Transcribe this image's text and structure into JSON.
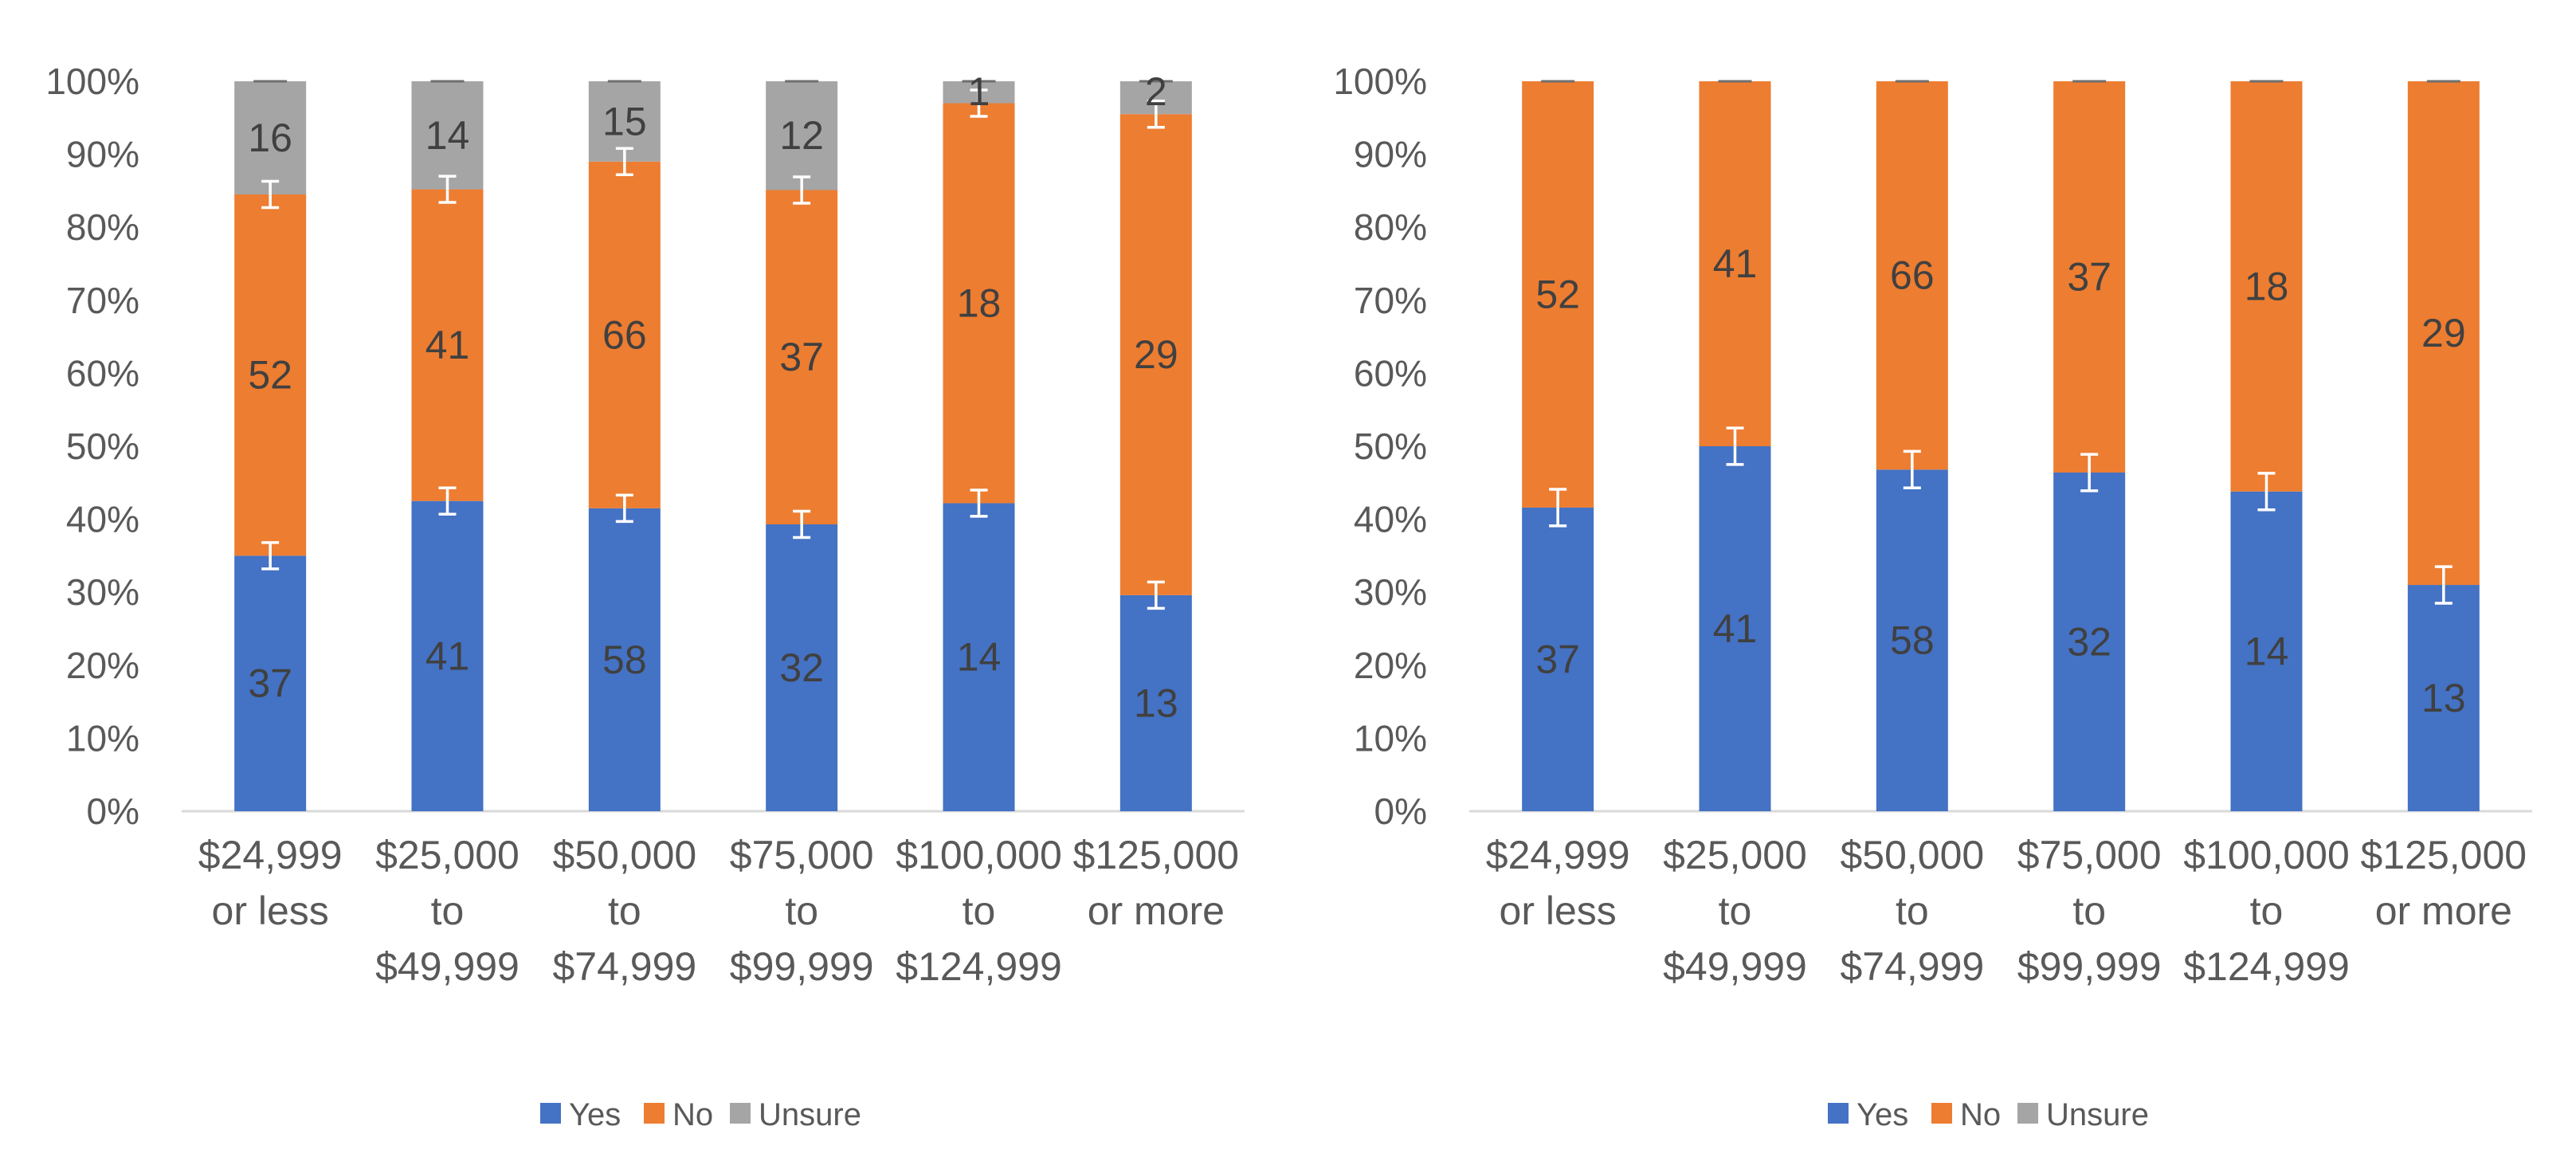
{
  "colors": {
    "yes": "#4472C4",
    "no": "#ED7D31",
    "unsure": "#A5A5A5",
    "axis": "#D9D9D9",
    "text": "#595959",
    "label": "#404040",
    "errorbar": "#ffffff"
  },
  "chart_data": [
    {
      "type": "bar",
      "stacked": true,
      "percent_stacked": true,
      "title": "",
      "xlabel": "",
      "ylabel": "",
      "ylim": [
        0,
        100
      ],
      "y_ticks": [
        "0%",
        "10%",
        "20%",
        "30%",
        "40%",
        "50%",
        "60%",
        "70%",
        "80%",
        "90%",
        "100%"
      ],
      "categories": [
        [
          "$24,999",
          "or less"
        ],
        [
          "$25,000",
          "to",
          "$49,999"
        ],
        [
          "$50,000",
          "to",
          "$74,999"
        ],
        [
          "$75,000",
          "to",
          "$99,999"
        ],
        [
          "$100,000",
          "to",
          "$124,999"
        ],
        [
          "$125,000",
          "or more"
        ]
      ],
      "legend": {
        "position": "bottom",
        "entries": [
          "Yes",
          "No",
          "Unsure"
        ]
      },
      "series": [
        {
          "name": "Yes",
          "counts": [
            37,
            41,
            58,
            32,
            14,
            13
          ],
          "percent": [
            35.0,
            42.5,
            41.5,
            39.3,
            42.2,
            29.6
          ]
        },
        {
          "name": "No",
          "counts": [
            52,
            41,
            66,
            37,
            18,
            29
          ],
          "percent": [
            49.5,
            42.7,
            47.5,
            45.8,
            54.8,
            65.9
          ]
        },
        {
          "name": "Unsure",
          "counts": [
            16,
            14,
            15,
            12,
            1,
            2
          ],
          "percent": [
            15.5,
            14.8,
            11.0,
            14.9,
            3.0,
            4.5
          ]
        }
      ],
      "error_bar_percent": [
        1.8,
        1.8,
        1.8,
        1.8,
        1.8,
        1.8
      ]
    },
    {
      "type": "bar",
      "stacked": true,
      "percent_stacked": true,
      "title": "",
      "xlabel": "",
      "ylabel": "",
      "ylim": [
        0,
        100
      ],
      "y_ticks": [
        "0%",
        "10%",
        "20%",
        "30%",
        "40%",
        "50%",
        "60%",
        "70%",
        "80%",
        "90%",
        "100%"
      ],
      "categories": [
        [
          "$24,999",
          "or less"
        ],
        [
          "$25,000",
          "to",
          "$49,999"
        ],
        [
          "$50,000",
          "to",
          "$74,999"
        ],
        [
          "$75,000",
          "to",
          "$99,999"
        ],
        [
          "$100,000",
          "to",
          "$124,999"
        ],
        [
          "$125,000",
          "or more"
        ]
      ],
      "legend": {
        "position": "bottom",
        "entries": [
          "Yes",
          "No",
          "Unsure"
        ]
      },
      "series": [
        {
          "name": "Yes",
          "counts": [
            37,
            41,
            58,
            32,
            14,
            13
          ],
          "percent": [
            41.6,
            50.0,
            46.8,
            46.4,
            43.8,
            31.0
          ]
        },
        {
          "name": "No",
          "counts": [
            52,
            41,
            66,
            37,
            18,
            29
          ],
          "percent": [
            58.4,
            50.0,
            53.2,
            53.6,
            56.2,
            69.0
          ]
        },
        {
          "name": "Unsure",
          "counts": [
            0,
            0,
            0,
            0,
            0,
            0
          ],
          "percent": [
            0,
            0,
            0,
            0,
            0,
            0
          ]
        }
      ],
      "error_bar_percent": [
        2.5,
        2.5,
        2.5,
        2.5,
        2.5,
        2.5
      ]
    }
  ]
}
